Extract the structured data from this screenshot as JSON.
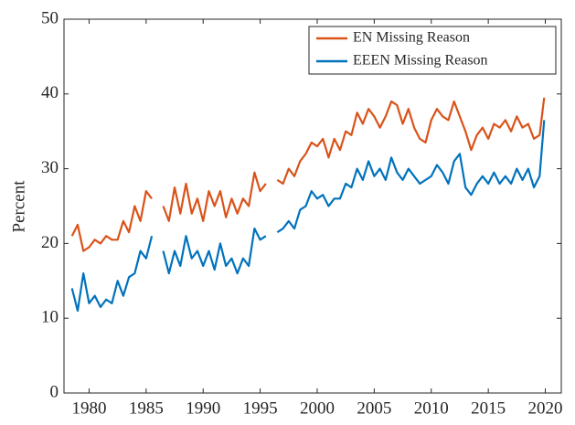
{
  "chart_data": {
    "type": "line",
    "ylabel": "Percent",
    "x": [
      1978.5,
      1979,
      1979.5,
      1980,
      1980.5,
      1981,
      1981.5,
      1982,
      1982.5,
      1983,
      1983.5,
      1984,
      1984.5,
      1985,
      1985.5,
      1986,
      1986.5,
      1987,
      1987.5,
      1988,
      1988.5,
      1989,
      1989.5,
      1990,
      1990.5,
      1991,
      1991.5,
      1992,
      1992.5,
      1993,
      1993.5,
      1994,
      1994.5,
      1995,
      1995.5,
      1996,
      1996.5,
      1997,
      1997.5,
      1998,
      1998.5,
      1999,
      1999.5,
      2000,
      2000.5,
      2001,
      2001.5,
      2002,
      2002.5,
      2003,
      2003.5,
      2004,
      2004.5,
      2005,
      2005.5,
      2006,
      2006.5,
      2007,
      2007.5,
      2008,
      2008.5,
      2009,
      2009.5,
      2010,
      2010.5,
      2011,
      2011.5,
      2012,
      2012.5,
      2013,
      2013.5,
      2014,
      2014.5,
      2015,
      2015.5,
      2016,
      2016.5,
      2017,
      2017.5,
      2018,
      2018.5,
      2019,
      2019.5,
      2019.9
    ],
    "series": [
      {
        "name": "EN Missing Reason",
        "color": "#d95319",
        "values": [
          21,
          22.5,
          19,
          19.5,
          20.5,
          20,
          21,
          20.5,
          20.5,
          23,
          21.5,
          25,
          23,
          27,
          26,
          null,
          25,
          23,
          27.5,
          24,
          28,
          24,
          26,
          23,
          27,
          25,
          27,
          23.5,
          26,
          24,
          26,
          25,
          29.5,
          27,
          28,
          null,
          28.5,
          28,
          30,
          29,
          31,
          32,
          33.5,
          33,
          34,
          31.5,
          34,
          32.5,
          35,
          34.5,
          37.5,
          36,
          38,
          37,
          35.5,
          37,
          39,
          38.5,
          36,
          38,
          35.5,
          34,
          33.5,
          36.5,
          38,
          37,
          36.5,
          39,
          37,
          35,
          32.5,
          34.5,
          35.5,
          34,
          36,
          35.5,
          36.5,
          35,
          37,
          35.5,
          36,
          34,
          34.5,
          39.5
        ]
      },
      {
        "name": "EEEN Missing Reason",
        "color": "#0072bd",
        "values": [
          14,
          11,
          16,
          12,
          13,
          11.5,
          12.5,
          12,
          15,
          13,
          15.5,
          16,
          19,
          18,
          21,
          null,
          19,
          16,
          19,
          17,
          21,
          18,
          19,
          17,
          19,
          16.5,
          20,
          17,
          18,
          16,
          18,
          17,
          22,
          20.5,
          21,
          null,
          21.5,
          22,
          23,
          22,
          24.5,
          25,
          27,
          26,
          26.5,
          25,
          26,
          26,
          28,
          27.5,
          30,
          28.5,
          31,
          29,
          30,
          28.5,
          31.5,
          29.5,
          28.5,
          30,
          29,
          28,
          28.5,
          29,
          30.5,
          29.5,
          28,
          31,
          32,
          27.5,
          26.5,
          28,
          29,
          28,
          29.5,
          28,
          29,
          28,
          30,
          28.5,
          30,
          27.5,
          29,
          36.5
        ]
      }
    ],
    "xlim": [
      1977.8,
      2021.4
    ],
    "ylim": [
      0,
      50
    ],
    "xticks": [
      1980,
      1985,
      1990,
      1995,
      2000,
      2005,
      2010,
      2015,
      2020
    ],
    "yticks": [
      0,
      10,
      20,
      30,
      40,
      50
    ],
    "grid": false,
    "legend": "upper right"
  }
}
